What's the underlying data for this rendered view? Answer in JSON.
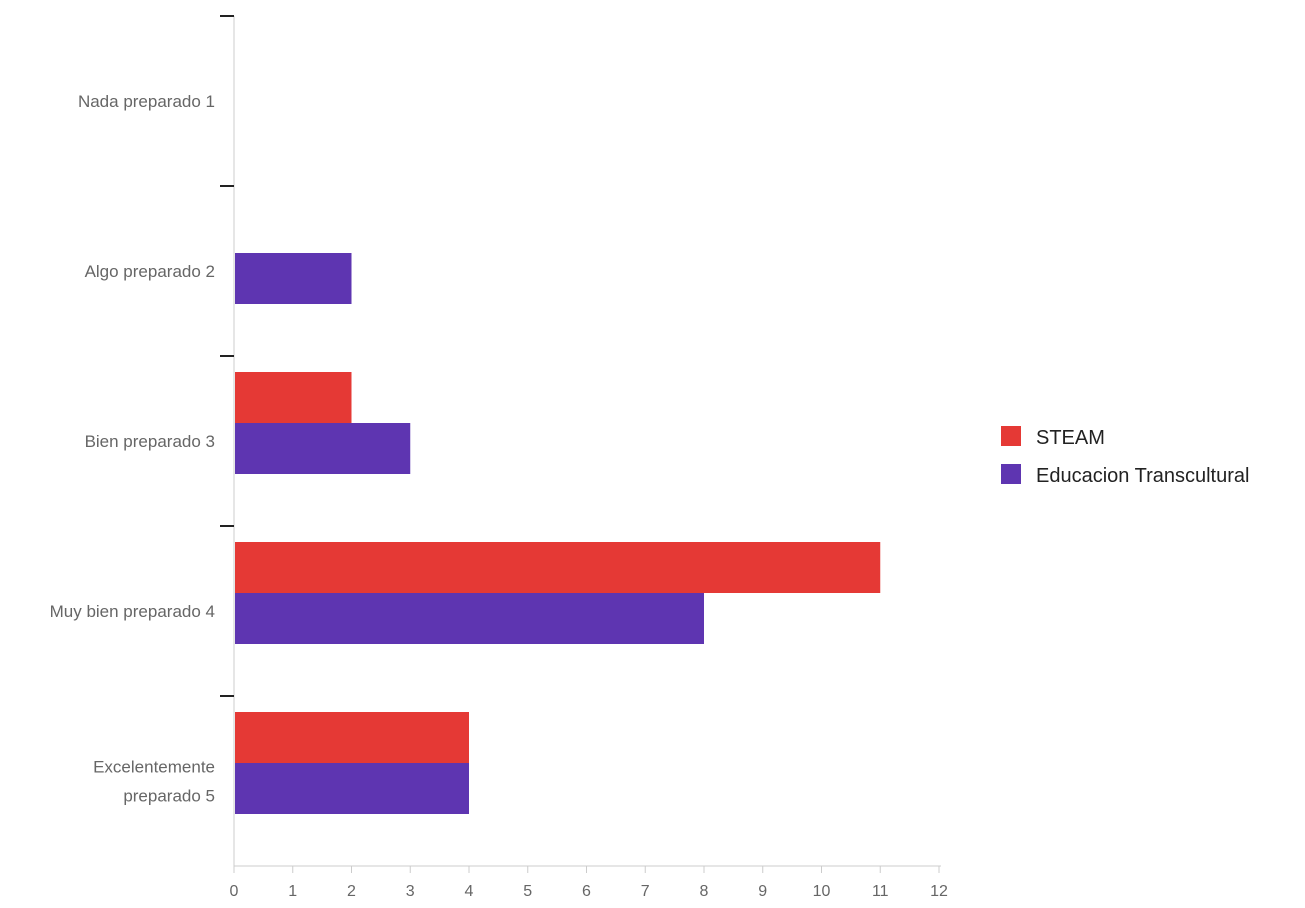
{
  "chart_data": {
    "type": "bar",
    "orientation": "horizontal",
    "categories": [
      [
        "Nada preparado 1"
      ],
      [
        "Algo preparado 2"
      ],
      [
        "Bien preparado 3"
      ],
      [
        "Muy bien preparado 4"
      ],
      [
        "Excelentemente",
        "preparado 5"
      ]
    ],
    "series": [
      {
        "name": "STEAM",
        "color": "#e53935",
        "values": [
          0,
          0,
          2,
          11,
          4
        ]
      },
      {
        "name": "Educacion Transcultural",
        "color": "#5e35b1",
        "values": [
          0,
          2,
          3,
          8,
          4
        ]
      }
    ],
    "xlim": [
      0,
      12
    ],
    "xticks": [
      "0",
      "1",
      "2",
      "3",
      "4",
      "5",
      "6",
      "7",
      "8",
      "9",
      "10",
      "11",
      "12"
    ],
    "grid": false,
    "legend_position": "right",
    "title": "",
    "xlabel": "",
    "ylabel": ""
  }
}
